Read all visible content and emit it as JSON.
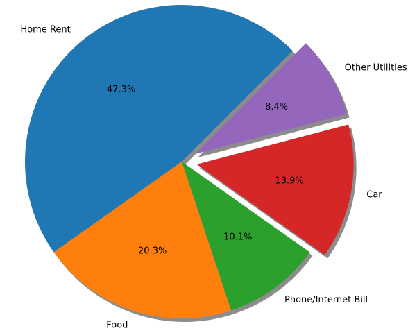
{
  "chart_data": {
    "type": "pie",
    "title": "",
    "slices": [
      {
        "label": "Home Rent",
        "value": 47.3,
        "pct_label": "47.3%",
        "color": "#1f77b4",
        "exploded": false
      },
      {
        "label": "Food",
        "value": 20.3,
        "pct_label": "20.3%",
        "color": "#ff7f0e",
        "exploded": false
      },
      {
        "label": "Phone/Internet Bill",
        "value": 10.1,
        "pct_label": "10.1%",
        "color": "#2ca02c",
        "exploded": false
      },
      {
        "label": "Car",
        "value": 13.9,
        "pct_label": "13.9%",
        "color": "#d62728",
        "exploded": true
      },
      {
        "label": "Other Utilities",
        "value": 8.4,
        "pct_label": "8.4%",
        "color": "#9467bd",
        "exploded": true
      }
    ],
    "start_angle_deg": 45,
    "direction": "counterclockwise",
    "shadow": true,
    "legend": "none"
  }
}
